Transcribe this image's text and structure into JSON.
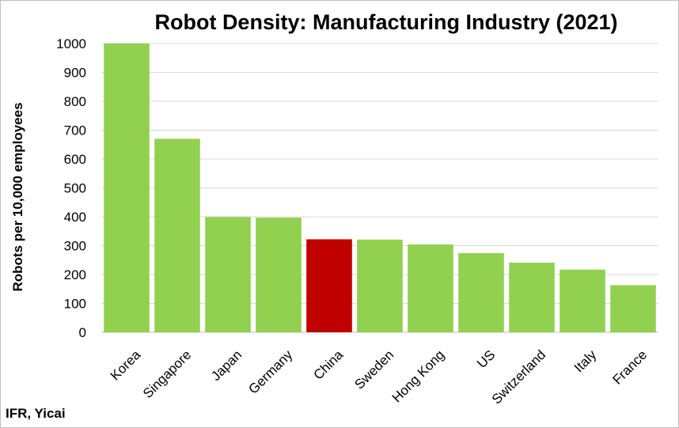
{
  "chart_data": {
    "type": "bar",
    "title": "Robot Density: Manufacturing Industry (2021)",
    "xlabel": "",
    "ylabel": "Robots per 10,000 employees",
    "categories": [
      "Korea",
      "Singapore",
      "Japan",
      "Germany",
      "China",
      "Sweden",
      "Hong Kong",
      "US",
      "Switzerland",
      "Italy",
      "France"
    ],
    "values": [
      1000,
      670,
      399,
      397,
      322,
      321,
      304,
      274,
      241,
      217,
      163
    ],
    "ylim": [
      0,
      1000
    ],
    "yticks": [
      0,
      100,
      200,
      300,
      400,
      500,
      600,
      700,
      800,
      900,
      1000
    ],
    "grid": true,
    "legend": "none",
    "colors": {
      "default": "#92d050",
      "highlight": "#c00000"
    },
    "highlight_category": "China"
  },
  "source": "IFR, Yicai"
}
